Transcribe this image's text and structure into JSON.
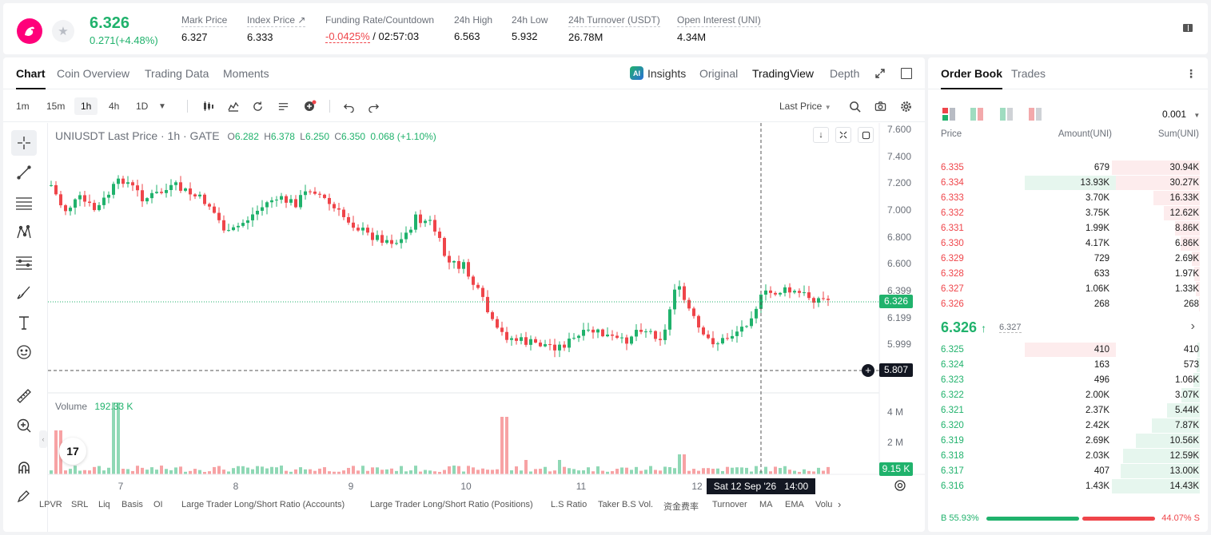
{
  "ticker": {
    "price": "6.326",
    "change": "0.271(+4.48%)",
    "stats": [
      {
        "label": "Mark Price",
        "value": "6.327"
      },
      {
        "label": "Index Price ↗",
        "value": "6.333"
      },
      {
        "label": "Funding Rate/Countdown",
        "value_red": "-0.0425%",
        "value": " / 02:57:03"
      },
      {
        "label": "24h High",
        "value": "6.563"
      },
      {
        "label": "24h Low",
        "value": "5.932"
      },
      {
        "label": "24h Turnover (USDT)",
        "value": "26.78M"
      },
      {
        "label": "Open Interest (UNI)",
        "value": "4.34M"
      }
    ]
  },
  "chart_tabs": [
    "Chart",
    "Coin Overview",
    "Trading Data",
    "Moments"
  ],
  "view_tabs": {
    "insights": "Insights",
    "original": "Original",
    "tradingview": "TradingView",
    "depth": "Depth"
  },
  "timeframes": [
    "1m",
    "15m",
    "1h",
    "4h",
    "1D"
  ],
  "active_timeframe": "1h",
  "last_price_select": "Last Price",
  "legend": {
    "symbol": "UNIUSDT Last Price · 1h · GATE",
    "o": "6.282",
    "h": "6.378",
    "l": "6.250",
    "c": "6.350",
    "change": "0.068 (+1.10%)",
    "o_lbl": "O",
    "h_lbl": "H",
    "l_lbl": "L",
    "c_lbl": "C"
  },
  "volume_legend": {
    "label": "Volume",
    "value": "192.33 K"
  },
  "price_axis": [
    "7.600",
    "7.400",
    "7.200",
    "7.000",
    "6.800",
    "6.600",
    "6.399",
    "6.199",
    "5.999"
  ],
  "current_price_tag": "6.326",
  "crosshair_price_tag": "5.807",
  "volume_axis": [
    "4 M",
    "2 M"
  ],
  "volume_tag": "9.15 K",
  "time_axis": [
    "7",
    "8",
    "9",
    "10",
    "11",
    "12"
  ],
  "crosshair_time": "Sat 12 Sep '26   14:00",
  "bottom_tabs": [
    "LPVR",
    "SRL",
    "Liq",
    "Basis",
    "OI",
    "Large Trader Long/Short Ratio (Accounts)",
    "Large Trader Long/Short Ratio (Positions)",
    "L.S Ratio",
    "Taker B.S Vol.",
    "资金费率",
    "Turnover",
    "MA",
    "EMA",
    "Volu"
  ],
  "tv_logo": "17",
  "orderbook": {
    "tabs": [
      "Order Book",
      "Trades"
    ],
    "precision": "0.001",
    "headers": {
      "price": "Price",
      "amount": "Amount(UNI)",
      "sum": "Sum(UNI)"
    },
    "asks": [
      {
        "price": "6.335",
        "amount": "679",
        "sum": "30.94K",
        "amt_frac": 0.0,
        "sum_frac": 1.0
      },
      {
        "price": "6.334",
        "amount": "13.93K",
        "sum": "30.27K",
        "amt_frac": 1.0,
        "sum_frac": 0.978
      },
      {
        "price": "6.333",
        "amount": "3.70K",
        "sum": "16.33K",
        "amt_frac": 0.0,
        "sum_frac": 0.528
      },
      {
        "price": "6.332",
        "amount": "3.75K",
        "sum": "12.62K",
        "amt_frac": 0.0,
        "sum_frac": 0.408
      },
      {
        "price": "6.331",
        "amount": "1.99K",
        "sum": "8.86K",
        "amt_frac": 0.0,
        "sum_frac": 0.286
      },
      {
        "price": "6.330",
        "amount": "4.17K",
        "sum": "6.86K",
        "amt_frac": 0.0,
        "sum_frac": 0.222
      },
      {
        "price": "6.329",
        "amount": "729",
        "sum": "2.69K",
        "amt_frac": 0.0,
        "sum_frac": 0.087
      },
      {
        "price": "6.328",
        "amount": "633",
        "sum": "1.97K",
        "amt_frac": 0.0,
        "sum_frac": 0.064
      },
      {
        "price": "6.327",
        "amount": "1.06K",
        "sum": "1.33K",
        "amt_frac": 0.0,
        "sum_frac": 0.043
      },
      {
        "price": "6.326",
        "amount": "268",
        "sum": "268",
        "amt_frac": 0.0,
        "sum_frac": 0.009
      }
    ],
    "last_price": "6.326",
    "mark_price": "6.327",
    "bids": [
      {
        "price": "6.325",
        "amount": "410",
        "sum": "410",
        "amt_frac": 1.0,
        "sum_frac": 0.028
      },
      {
        "price": "6.324",
        "amount": "163",
        "sum": "573",
        "amt_frac": 0.0,
        "sum_frac": 0.04
      },
      {
        "price": "6.323",
        "amount": "496",
        "sum": "1.06K",
        "amt_frac": 0.0,
        "sum_frac": 0.073
      },
      {
        "price": "6.322",
        "amount": "2.00K",
        "sum": "3.07K",
        "amt_frac": 0.0,
        "sum_frac": 0.212
      },
      {
        "price": "6.321",
        "amount": "2.37K",
        "sum": "5.44K",
        "amt_frac": 0.0,
        "sum_frac": 0.376
      },
      {
        "price": "6.320",
        "amount": "2.42K",
        "sum": "7.87K",
        "amt_frac": 0.0,
        "sum_frac": 0.544
      },
      {
        "price": "6.319",
        "amount": "2.69K",
        "sum": "10.56K",
        "amt_frac": 0.0,
        "sum_frac": 0.73
      },
      {
        "price": "6.318",
        "amount": "2.03K",
        "sum": "12.59K",
        "amt_frac": 0.0,
        "sum_frac": 0.87
      },
      {
        "price": "6.317",
        "amount": "407",
        "sum": "13.00K",
        "amt_frac": 0.0,
        "sum_frac": 0.898
      },
      {
        "price": "6.316",
        "amount": "1.43K",
        "sum": "14.43K",
        "amt_frac": 0.0,
        "sum_frac": 1.0
      }
    ],
    "buy_ratio": "55.93%",
    "sell_ratio": "44.07%",
    "buy_label": "B",
    "sell_label": "S",
    "buy_fraction": 0.5593
  },
  "colors": {
    "up": "#20b26c",
    "down": "#ef454a",
    "text_muted": "#6b7079"
  }
}
